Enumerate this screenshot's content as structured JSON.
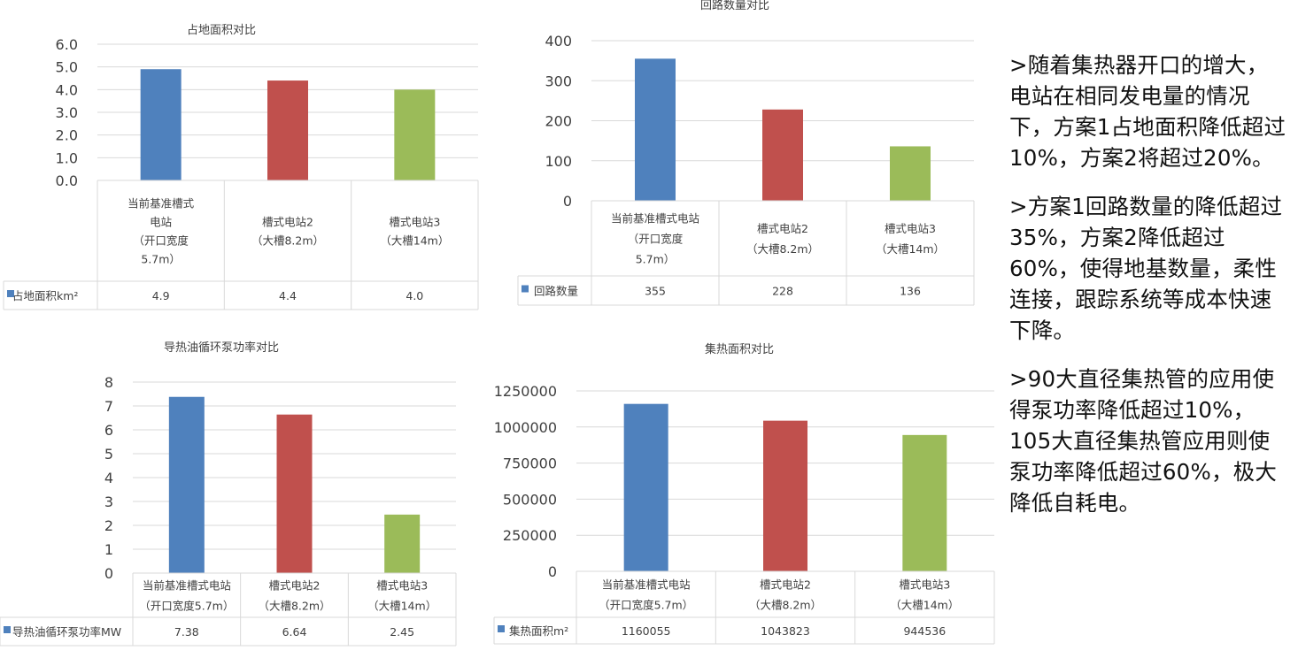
{
  "colors": [
    "#4f81bd",
    "#c0504d",
    "#9bbb59"
  ],
  "charts": [
    {
      "id": "area",
      "chart_data": {
        "type": "bar",
        "title": "占地面积对比",
        "categories": [
          [
            "当前基准槽式",
            "电站",
            "（开口宽度",
            "5.7m）"
          ],
          [
            "槽式电站2",
            "（大槽8.2m）"
          ],
          [
            "槽式电站3",
            "（大槽14m）"
          ]
        ],
        "series": [
          {
            "name": "占地面积km²",
            "values": [
              4.9,
              4.4,
              4.0
            ]
          }
        ],
        "table_values": [
          "4.9",
          "4.4",
          "4.0"
        ],
        "yticks": [
          "0.0",
          "1.0",
          "2.0",
          "3.0",
          "4.0",
          "5.0",
          "6.0"
        ],
        "ylim": [
          0,
          6
        ],
        "grid": true,
        "legend": "data-table"
      }
    },
    {
      "id": "loops",
      "chart_data": {
        "type": "bar",
        "title": "回路数量对比",
        "categories": [
          [
            "当前基准槽式电站",
            "（开口宽度",
            "5.7m）"
          ],
          [
            "槽式电站2",
            "（大槽8.2m）"
          ],
          [
            "槽式电站3",
            "（大槽14m）"
          ]
        ],
        "series": [
          {
            "name": "回路数量",
            "values": [
              355,
              228,
              136
            ]
          }
        ],
        "table_values": [
          "355",
          "228",
          "136"
        ],
        "yticks": [
          "0",
          "100",
          "200",
          "300",
          "400"
        ],
        "ylim": [
          0,
          400
        ],
        "grid": true,
        "legend": "data-table"
      }
    },
    {
      "id": "pump",
      "chart_data": {
        "type": "bar",
        "title": "导热油循环泵功率对比",
        "categories": [
          [
            "当前基准槽式电站",
            "（开口宽度5.7m）"
          ],
          [
            "槽式电站2",
            "（大槽8.2m）"
          ],
          [
            "槽式电站3",
            "（大槽14m）"
          ]
        ],
        "series": [
          {
            "name": "导热油循环泵功率MW",
            "values": [
              7.38,
              6.64,
              2.45
            ]
          }
        ],
        "table_values": [
          "7.38",
          "6.64",
          "2.45"
        ],
        "yticks": [
          "0",
          "1",
          "2",
          "3",
          "4",
          "5",
          "6",
          "7",
          "8"
        ],
        "ylim": [
          0,
          8
        ],
        "grid": true,
        "legend": "data-table"
      }
    },
    {
      "id": "collector",
      "chart_data": {
        "type": "bar",
        "title": "集热面积对比",
        "categories": [
          [
            "当前基准槽式电站",
            "（开口宽度5.7m）"
          ],
          [
            "槽式电站2",
            "（大槽8.2m）"
          ],
          [
            "槽式电站3",
            "（大槽14m）"
          ]
        ],
        "series": [
          {
            "name": "集热面积m²",
            "values": [
              1160055,
              1043823,
              944536
            ]
          }
        ],
        "table_values": [
          "1160055",
          "1043823",
          "944536"
        ],
        "yticks": [
          "0",
          "250000",
          "500000",
          "750000",
          "1000000",
          "1250000"
        ],
        "ylim": [
          0,
          1250000
        ],
        "grid": true,
        "legend": "data-table"
      }
    }
  ],
  "notes": [
    ">随着集热器开口的增大，电站在相同发电量的情况下，方案1占地面积降低超过10%，方案2将超过20%。",
    ">方案1回路数量的降低超过35%，方案2降低超过60%，使得地基数量，柔性连接，跟踪系统等成本快速下降。",
    ">90大直径集热管的应用使得泵功率降低超过10%，105大直径集热管应用则使泵功率降低超过60%，极大降低自耗电。"
  ]
}
